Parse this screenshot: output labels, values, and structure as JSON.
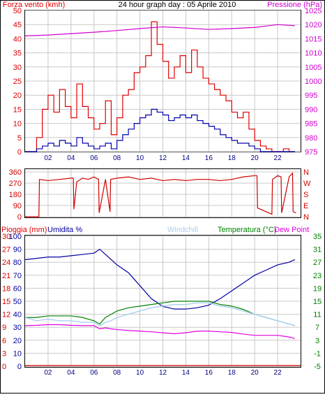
{
  "header": {
    "left_title": "Forza vento (kmh)",
    "center_title": "24 hour graph day : 05 Aprile 2010",
    "right_title": "Pressione (hPa)"
  },
  "colors": {
    "wind_speed": "#e00000",
    "wind_avg": "#0000b0",
    "pressure": "#d000d0",
    "wind_dir": "#d00000",
    "humidity": "#0000a0",
    "temperature": "#008000",
    "windchill": "#a8d0f0",
    "dew_point": "#e000e0",
    "rain": "#e00000",
    "grid": "#c8c8c8",
    "frame": "#000000"
  },
  "chart_data": [
    {
      "type": "line",
      "name": "wind_pressure",
      "x_range_hours": [
        0,
        24
      ],
      "x_tick_labels": [
        "02",
        "04",
        "06",
        "08",
        "10",
        "12",
        "14",
        "16",
        "18",
        "20",
        "22"
      ],
      "left_axis": {
        "label": "Forza vento (kmh)",
        "ylim": [
          0,
          50
        ],
        "ticks": [
          "0",
          "5",
          "10",
          "15",
          "20",
          "25",
          "30",
          "35",
          "40",
          "45",
          "50"
        ]
      },
      "right_axis": {
        "label": "Pressione (hPa)",
        "ylim": [
          975,
          1025
        ],
        "ticks": [
          "975",
          "980",
          "985",
          "990",
          "995",
          "1000",
          "1005",
          "1010",
          "1015",
          "1020",
          "1025"
        ]
      },
      "series": [
        {
          "key": "gust",
          "axis": "left",
          "color_key": "wind_speed",
          "x": [
            0,
            1,
            1.5,
            2,
            2.5,
            3,
            3.5,
            4,
            4.5,
            5,
            5.5,
            6,
            6.5,
            7,
            7.5,
            8,
            8.5,
            9,
            9.5,
            10,
            10.5,
            11,
            11.5,
            12,
            12.5,
            13,
            13.5,
            14,
            14.5,
            15,
            15.5,
            16,
            16.5,
            17,
            17.5,
            18,
            18.5,
            19,
            19.5,
            20,
            20.5,
            21,
            21.5,
            22,
            22.5,
            23,
            23.5
          ],
          "y": [
            0,
            5,
            15,
            20,
            14,
            22,
            16,
            12,
            24,
            16,
            12,
            8,
            10,
            18,
            6,
            12,
            20,
            22,
            28,
            30,
            34,
            46,
            38,
            32,
            26,
            30,
            34,
            28,
            36,
            30,
            26,
            24,
            22,
            20,
            18,
            14,
            12,
            14,
            8,
            4,
            2,
            1,
            0,
            0,
            1,
            0,
            0
          ]
        },
        {
          "key": "average",
          "axis": "left",
          "color_key": "wind_avg",
          "x": [
            0,
            1,
            1.5,
            2,
            2.5,
            3,
            3.5,
            4,
            4.5,
            5,
            5.5,
            6,
            6.5,
            7,
            7.5,
            8,
            8.5,
            9,
            9.5,
            10,
            10.5,
            11,
            11.5,
            12,
            12.5,
            13,
            13.5,
            14,
            14.5,
            15,
            15.5,
            16,
            16.5,
            17,
            17.5,
            18,
            18.5,
            19,
            19.5,
            20,
            20.5,
            21,
            21.5,
            22,
            22.5,
            23,
            23.5
          ],
          "y": [
            0,
            1,
            2,
            3,
            2,
            4,
            3,
            2,
            5,
            3,
            2,
            1,
            2,
            3,
            1,
            4,
            6,
            8,
            10,
            12,
            13,
            15,
            14,
            13,
            11,
            12,
            13,
            12,
            13,
            11,
            10,
            9,
            8,
            6,
            5,
            4,
            3,
            3,
            2,
            1,
            0,
            0,
            0,
            0,
            0,
            0,
            0
          ]
        },
        {
          "key": "pressure",
          "axis": "right",
          "color_key": "pressure",
          "x": [
            0,
            2,
            4,
            6,
            8,
            10,
            12,
            14,
            16,
            18,
            20,
            22,
            23.5
          ],
          "y": [
            1016.0,
            1016.3,
            1016.8,
            1017.3,
            1017.9,
            1018.6,
            1019.2,
            1018.8,
            1018.3,
            1018.6,
            1019.0,
            1020.0,
            1019.6
          ]
        }
      ]
    },
    {
      "type": "line",
      "name": "wind_direction",
      "x_range_hours": [
        0,
        24
      ],
      "left_axis": {
        "ylim": [
          0,
          360
        ],
        "ticks": [
          "0",
          "90",
          "180",
          "270",
          "360"
        ]
      },
      "right_axis": {
        "ticks": [
          "N",
          "E",
          "S",
          "W",
          "N"
        ]
      },
      "series": [
        {
          "key": "direction",
          "color_key": "wind_dir",
          "x": [
            0,
            1.2,
            1.25,
            2,
            3,
            4,
            4.2,
            4.25,
            4.5,
            5,
            5.5,
            6,
            6.4,
            6.45,
            7,
            7.4,
            7.45,
            8,
            9,
            10,
            11,
            12,
            13,
            14,
            15,
            16,
            17,
            18,
            19,
            20,
            20.2,
            20.25,
            21,
            21.5,
            21.55,
            22,
            22.3,
            22.35,
            23,
            23.3,
            23.35,
            23.6
          ],
          "y": [
            0,
            0,
            300,
            290,
            300,
            310,
            310,
            60,
            280,
            310,
            300,
            320,
            300,
            30,
            300,
            40,
            300,
            310,
            320,
            300,
            310,
            290,
            300,
            290,
            300,
            300,
            290,
            300,
            320,
            330,
            330,
            70,
            40,
            20,
            300,
            330,
            320,
            30,
            320,
            350,
            40,
            30
          ]
        }
      ]
    },
    {
      "type": "line",
      "name": "weather",
      "x_range_hours": [
        0,
        24
      ],
      "legend": [
        "Pioggia (mm)",
        "Umidita %",
        "Windchill",
        "Temperatura (°C)",
        "Dew Point"
      ],
      "left_axes": {
        "rain_ticks": [
          "0",
          "3",
          "6",
          "9",
          "12",
          "15",
          "18",
          "21",
          "24",
          "27",
          "30"
        ],
        "humidity_ticks": [
          "0",
          "10",
          "20",
          "30",
          "40",
          "50",
          "60",
          "70",
          "80",
          "90",
          "100"
        ]
      },
      "right_axis": {
        "label": "Temperatura (°C)",
        "ylim": [
          -5,
          35
        ],
        "ticks": [
          "-5",
          "-1",
          "3",
          "7",
          "11",
          "15",
          "19",
          "23",
          "27",
          "31",
          "35"
        ]
      },
      "series": [
        {
          "key": "rain",
          "color_key": "rain",
          "x": [
            0,
            24
          ],
          "y": [
            0,
            0
          ]
        },
        {
          "key": "humidity",
          "color_key": "humidity",
          "x": [
            0,
            1,
            2,
            3,
            4,
            5,
            6,
            6.5,
            7,
            7.5,
            8,
            9,
            10,
            11,
            12,
            13,
            14,
            15,
            16,
            17,
            18,
            19,
            20,
            21,
            22,
            23,
            23.5
          ],
          "y": [
            82,
            83,
            84,
            84,
            85,
            86,
            87,
            90,
            86,
            82,
            78,
            72,
            62,
            52,
            46,
            44,
            44,
            45,
            47,
            52,
            58,
            64,
            70,
            74,
            78,
            80,
            82
          ]
        },
        {
          "key": "temperature",
          "axis": "right",
          "color_key": "temperature",
          "x": [
            0,
            1,
            2,
            3,
            4,
            5,
            6,
            6.5,
            7,
            7.5,
            8,
            9,
            10,
            11,
            12,
            13,
            14,
            15,
            16,
            17,
            18,
            19,
            20,
            21,
            22,
            23,
            23.5
          ],
          "y": [
            10,
            10,
            10.5,
            10.5,
            10.5,
            10,
            9,
            8,
            10,
            11,
            12,
            13,
            13.5,
            14,
            14.5,
            15,
            15,
            15,
            15,
            14,
            13.5,
            12.5,
            11,
            10,
            9,
            8,
            7.5
          ]
        },
        {
          "key": "windchill",
          "axis": "right",
          "color_key": "windchill",
          "x": [
            0,
            1,
            2,
            3,
            4,
            5,
            6,
            6.5,
            7,
            7.5,
            8,
            9,
            10,
            11,
            12,
            13,
            14,
            15,
            16,
            17,
            18,
            19,
            20,
            21,
            22,
            23,
            23.5
          ],
          "y": [
            10,
            9,
            9.5,
            9,
            9,
            8.5,
            8.5,
            7.5,
            8.5,
            9,
            10,
            11,
            12,
            13,
            13.5,
            14,
            14,
            14.5,
            14.5,
            13.5,
            13,
            12,
            11,
            10,
            9,
            8,
            7.5
          ]
        },
        {
          "key": "dew_point",
          "axis": "right",
          "color_key": "dew_point",
          "x": [
            0,
            1,
            2,
            3,
            4,
            5,
            6,
            6.5,
            7,
            7.5,
            8,
            9,
            10,
            11,
            12,
            13,
            14,
            15,
            16,
            17,
            18,
            19,
            20,
            21,
            22,
            23,
            23.5
          ],
          "y": [
            7.5,
            7.6,
            7.8,
            7.8,
            7.6,
            7.5,
            7.5,
            6.5,
            6.8,
            6.5,
            6.3,
            6.0,
            5.8,
            5.6,
            5.3,
            5.0,
            5.3,
            5.8,
            5.8,
            5.6,
            5.4,
            4.9,
            4.5,
            4.5,
            4.5,
            4.0,
            3.5
          ]
        }
      ]
    }
  ]
}
